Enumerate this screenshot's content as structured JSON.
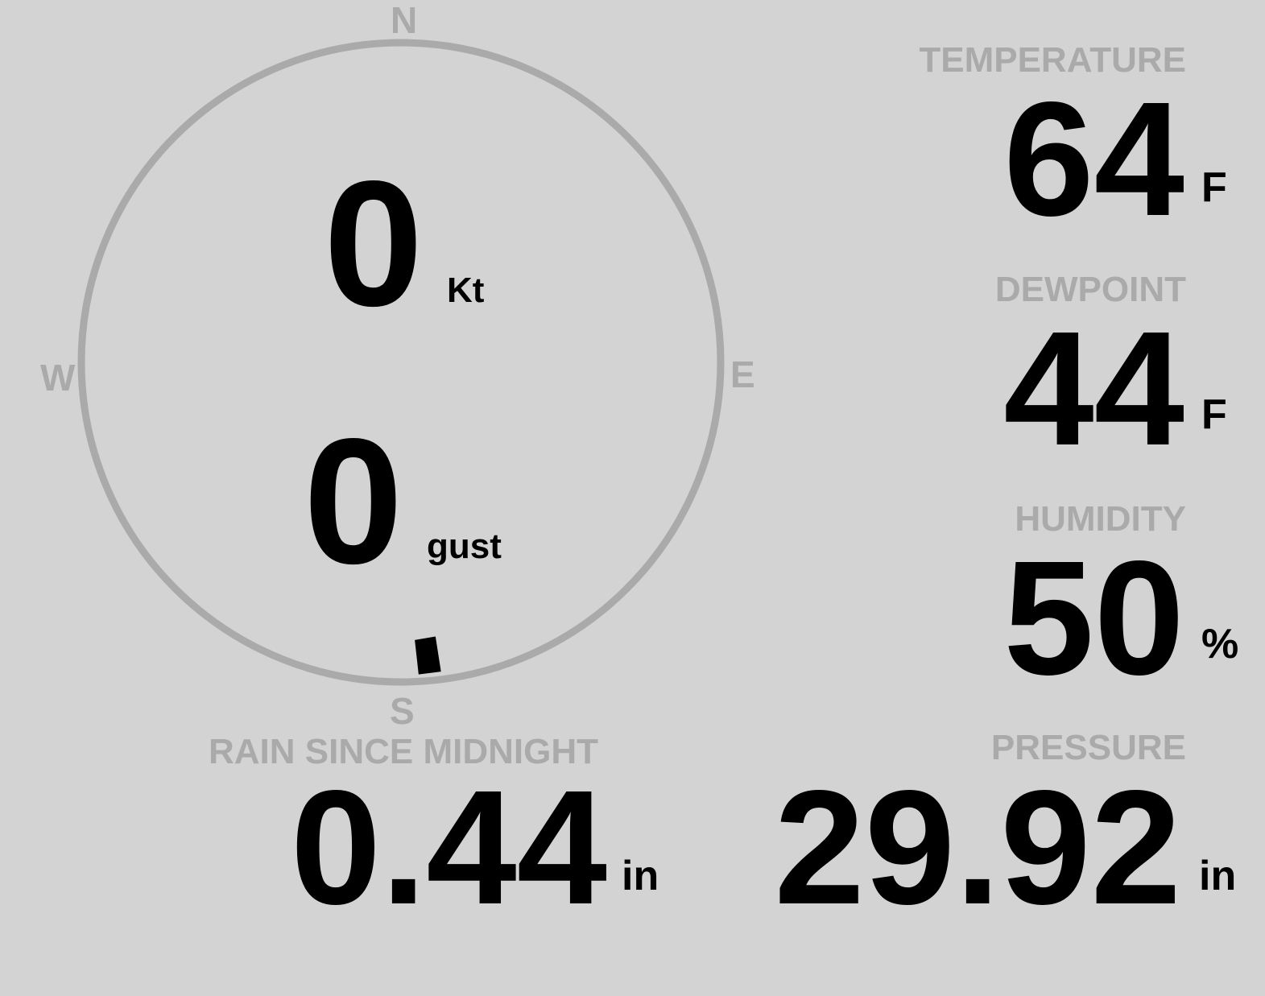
{
  "compass": {
    "n": "N",
    "s": "S",
    "e": "E",
    "w": "W",
    "ring_color": "#aaaaaa",
    "wind_direction_deg": 175
  },
  "wind": {
    "speed": "0",
    "speed_unit": "Kt",
    "gust": "0",
    "gust_unit": "gust"
  },
  "temperature": {
    "label": "TEMPERATURE",
    "value": "64",
    "unit": "F"
  },
  "dewpoint": {
    "label": "DEWPOINT",
    "value": "44",
    "unit": "F"
  },
  "humidity": {
    "label": "HUMIDITY",
    "value": "50",
    "unit": "%"
  },
  "rain": {
    "label": "RAIN SINCE MIDNIGHT",
    "value": "0.44",
    "unit": "in"
  },
  "pressure": {
    "label": "PRESSURE",
    "value": "29.92",
    "unit": "in"
  },
  "colors": {
    "background": "#d3d3d3",
    "label": "#aaaaaa",
    "value": "#000000"
  }
}
